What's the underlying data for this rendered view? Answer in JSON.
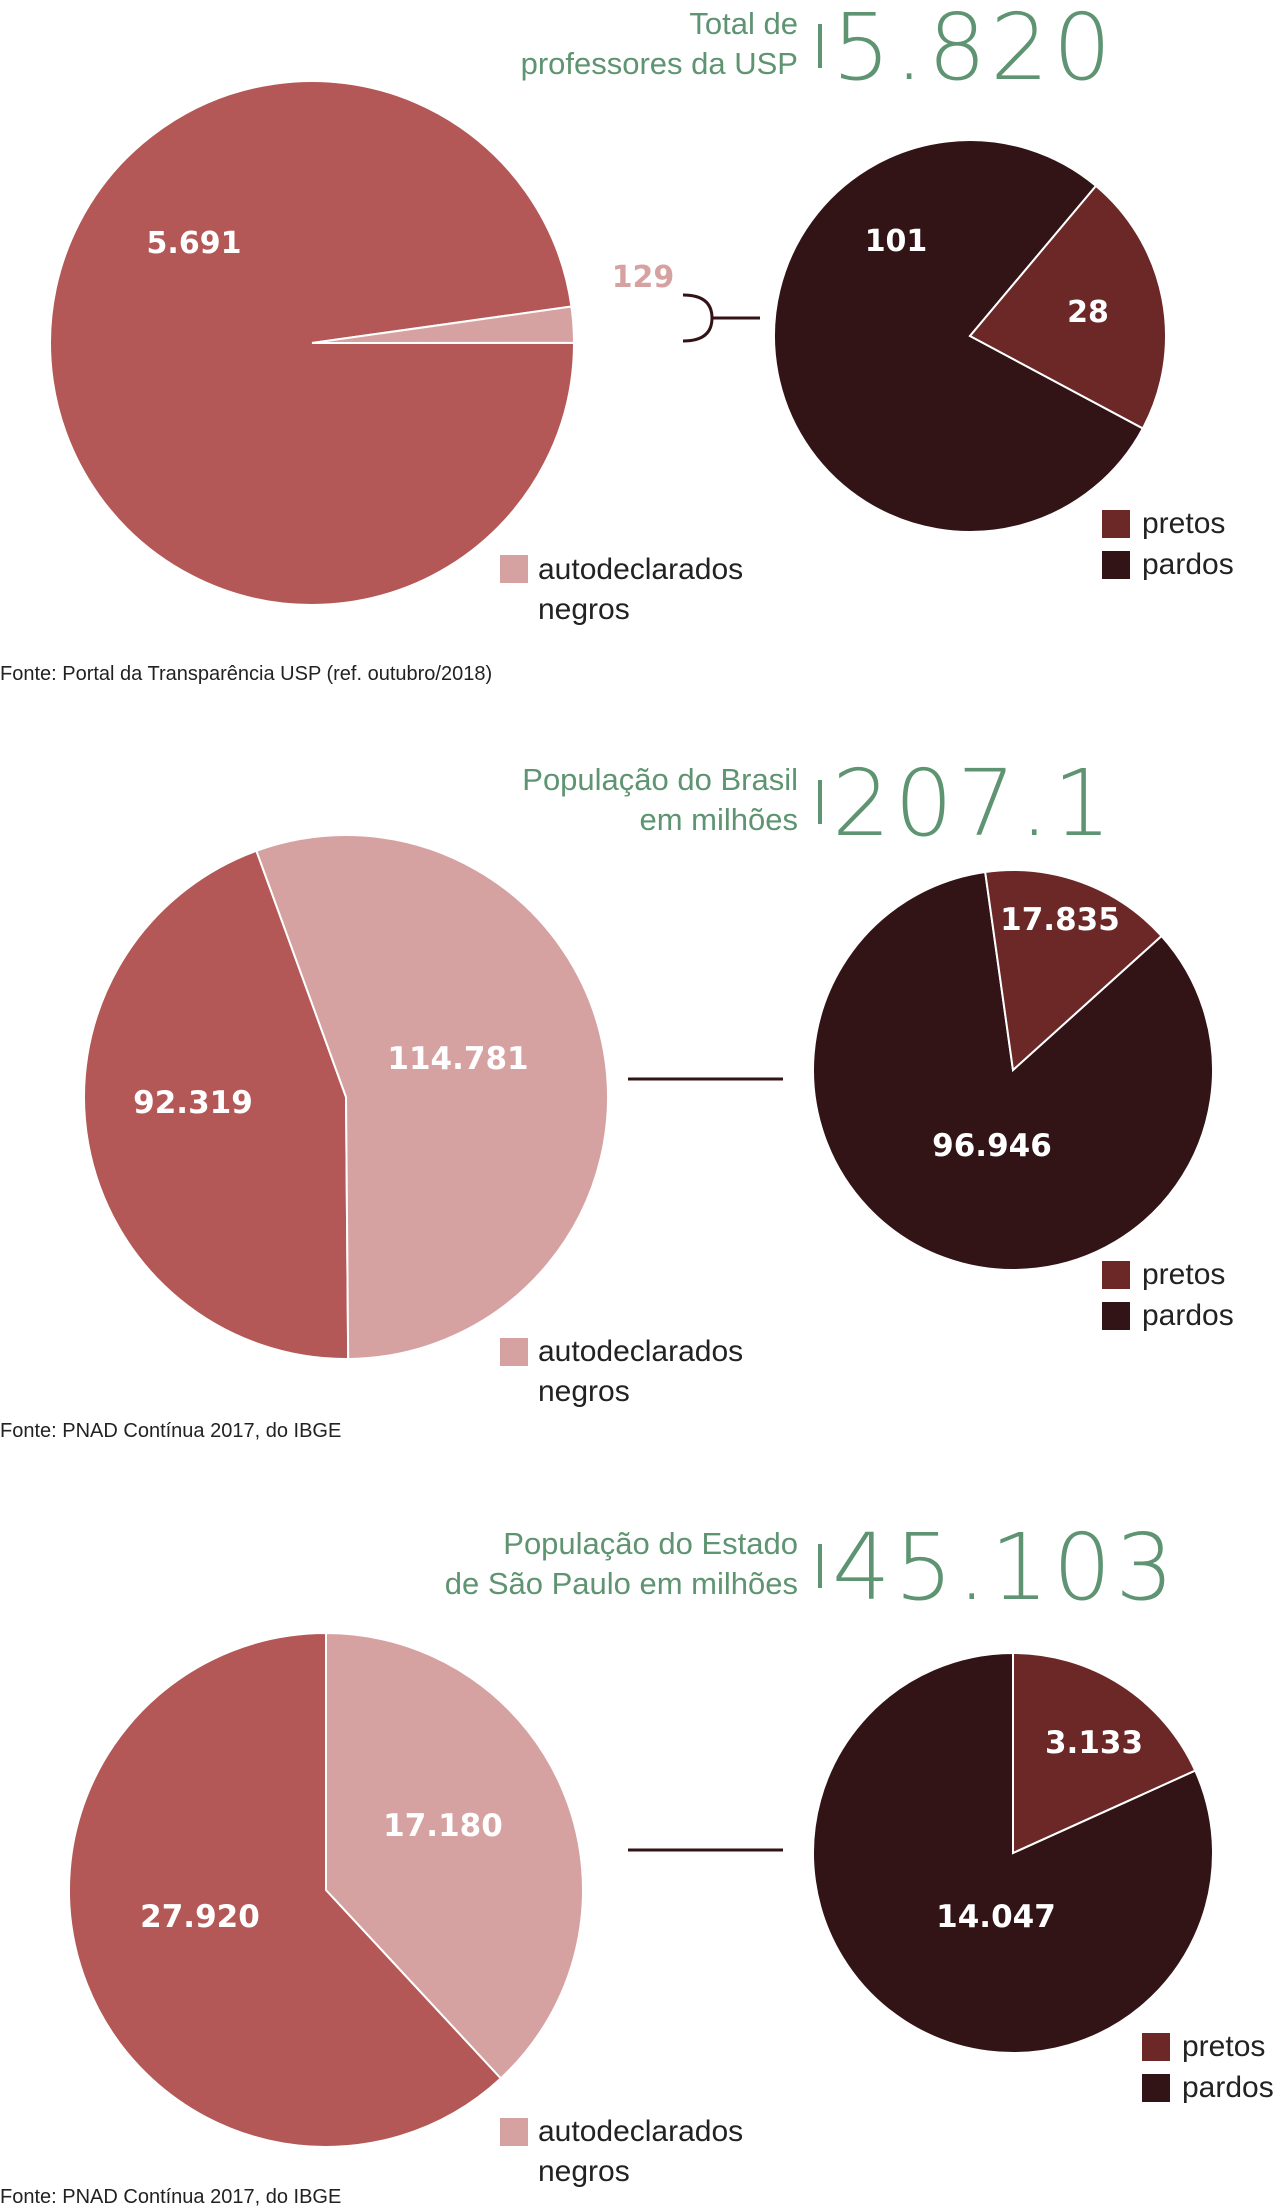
{
  "colors": {
    "nao_negros": "#b35856",
    "negros": "#d6a2a1",
    "pretos": "#6b2827",
    "pardos": "#321417",
    "accent_green": "#5e9471",
    "connector": "#321417"
  },
  "legend": {
    "negros": "autodeclarados\nnegros",
    "pretos": "pretos",
    "pardos": "pardos"
  },
  "sections": [
    {
      "header_label": "Total de\nprofessores da USP",
      "header_total": "5.820",
      "source": "Fonte: Portal da Transparência USP (ref. outubro/2018)"
    },
    {
      "header_label": "População do Brasil\nem milhões",
      "header_total": "207.1",
      "source": "Fonte: PNAD Contínua 2017, do IBGE"
    },
    {
      "header_label": "População do Estado\nde São Paulo em milhões",
      "header_total": "45.103",
      "source": "Fonte: PNAD Contínua 2017, do IBGE"
    }
  ],
  "chart_data": [
    {
      "type": "pie",
      "title": "Total de professores da USP",
      "slices": [
        {
          "name": "",
          "value": 5691,
          "label": "5.691"
        },
        {
          "name": "autodeclarados negros",
          "value": 129,
          "label": "129"
        }
      ]
    },
    {
      "type": "pie",
      "slices": [
        {
          "name": "pardos",
          "value": 101,
          "label": "101"
        },
        {
          "name": "pretos",
          "value": 28,
          "label": "28"
        }
      ]
    },
    {
      "type": "pie",
      "title": "População do Brasil em milhões",
      "slices": [
        {
          "name": "",
          "value": 92.319,
          "label": "92.319"
        },
        {
          "name": "autodeclarados negros",
          "value": 114.781,
          "label": "114.781"
        }
      ]
    },
    {
      "type": "pie",
      "slices": [
        {
          "name": "pardos",
          "value": 96.946,
          "label": "96.946"
        },
        {
          "name": "pretos",
          "value": 17.835,
          "label": "17.835"
        }
      ]
    },
    {
      "type": "pie",
      "title": "População do Estado de São Paulo em milhões",
      "slices": [
        {
          "name": "",
          "value": 27.92,
          "label": "27.920"
        },
        {
          "name": "autodeclarados negros",
          "value": 17.18,
          "label": "17.180"
        }
      ]
    },
    {
      "type": "pie",
      "slices": [
        {
          "name": "pardos",
          "value": 14.047,
          "label": "14.047"
        },
        {
          "name": "pretos",
          "value": 3.133,
          "label": "3.133"
        }
      ]
    }
  ]
}
